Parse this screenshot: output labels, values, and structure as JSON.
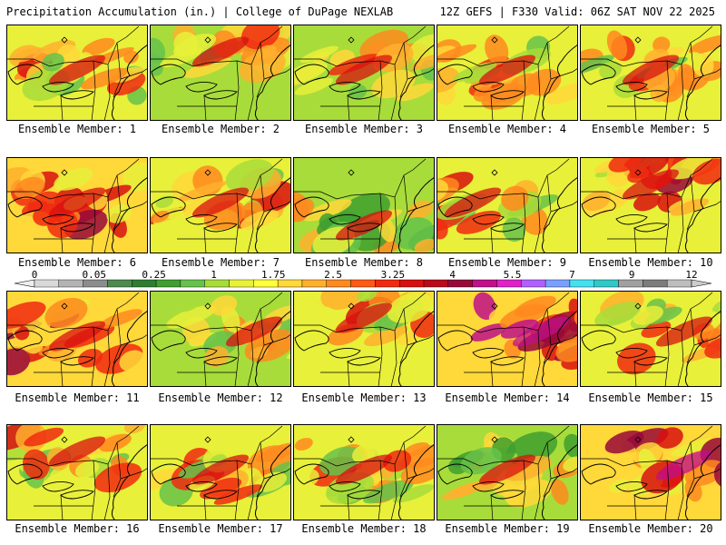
{
  "header": {
    "left": "Precipitation Accumulation (in.) | College of DuPage NEXLAB",
    "right": "12Z GEFS | F330 Valid: 06Z SAT NOV 22 2025"
  },
  "members": [
    {
      "label": "Ensemble Member: 1",
      "intensity": 0.55,
      "heavy_band": "center"
    },
    {
      "label": "Ensemble Member: 2",
      "intensity": 0.4,
      "heavy_band": "north"
    },
    {
      "label": "Ensemble Member: 3",
      "intensity": 0.45,
      "heavy_band": "center"
    },
    {
      "label": "Ensemble Member: 4",
      "intensity": 0.6,
      "heavy_band": "center"
    },
    {
      "label": "Ensemble Member: 5",
      "intensity": 0.5,
      "heavy_band": "center"
    },
    {
      "label": "Ensemble Member: 6",
      "intensity": 0.7,
      "heavy_band": "center"
    },
    {
      "label": "Ensemble Member: 7",
      "intensity": 0.6,
      "heavy_band": "center"
    },
    {
      "label": "Ensemble Member: 8",
      "intensity": 0.35,
      "heavy_band": "south"
    },
    {
      "label": "Ensemble Member: 9",
      "intensity": 0.55,
      "heavy_band": "west"
    },
    {
      "label": "Ensemble Member: 10",
      "intensity": 0.65,
      "heavy_band": "north"
    },
    {
      "label": "Ensemble Member: 11",
      "intensity": 0.7,
      "heavy_band": "center"
    },
    {
      "label": "Ensemble Member: 12",
      "intensity": 0.45,
      "heavy_band": "east"
    },
    {
      "label": "Ensemble Member: 13",
      "intensity": 0.55,
      "heavy_band": "north"
    },
    {
      "label": "Ensemble Member: 14",
      "intensity": 0.85,
      "heavy_band": "east"
    },
    {
      "label": "Ensemble Member: 15",
      "intensity": 0.5,
      "heavy_band": "east"
    },
    {
      "label": "Ensemble Member: 16",
      "intensity": 0.55,
      "heavy_band": "north"
    },
    {
      "label": "Ensemble Member: 17",
      "intensity": 0.5,
      "heavy_band": "center"
    },
    {
      "label": "Ensemble Member: 18",
      "intensity": 0.5,
      "heavy_band": "center"
    },
    {
      "label": "Ensemble Member: 19",
      "intensity": 0.4,
      "heavy_band": "center"
    },
    {
      "label": "Ensemble Member: 20",
      "intensity": 0.75,
      "heavy_band": "east"
    }
  ],
  "colorbar": {
    "tick_labels": [
      "0",
      "0.05",
      "0.25",
      "1",
      "1.75",
      "2.5",
      "3.25",
      "4",
      "5.5",
      "7",
      "9",
      "12"
    ],
    "colors": [
      "#d9d9d9",
      "#b3b3b3",
      "#8c8c8c",
      "#4d8a4d",
      "#2e7d32",
      "#3f9f2f",
      "#66c24a",
      "#a8dc3a",
      "#e8f03a",
      "#ffff3c",
      "#ffd83a",
      "#ffb02e",
      "#ff8a1f",
      "#ff5a14",
      "#f02a10",
      "#d81010",
      "#b80a1a",
      "#98083a",
      "#c0108a",
      "#e020c8",
      "#b060ff",
      "#7aa0ff",
      "#44e0f0",
      "#30c8c8",
      "#a0a0a0",
      "#7c7c7c",
      "#bdbdbd"
    ]
  }
}
